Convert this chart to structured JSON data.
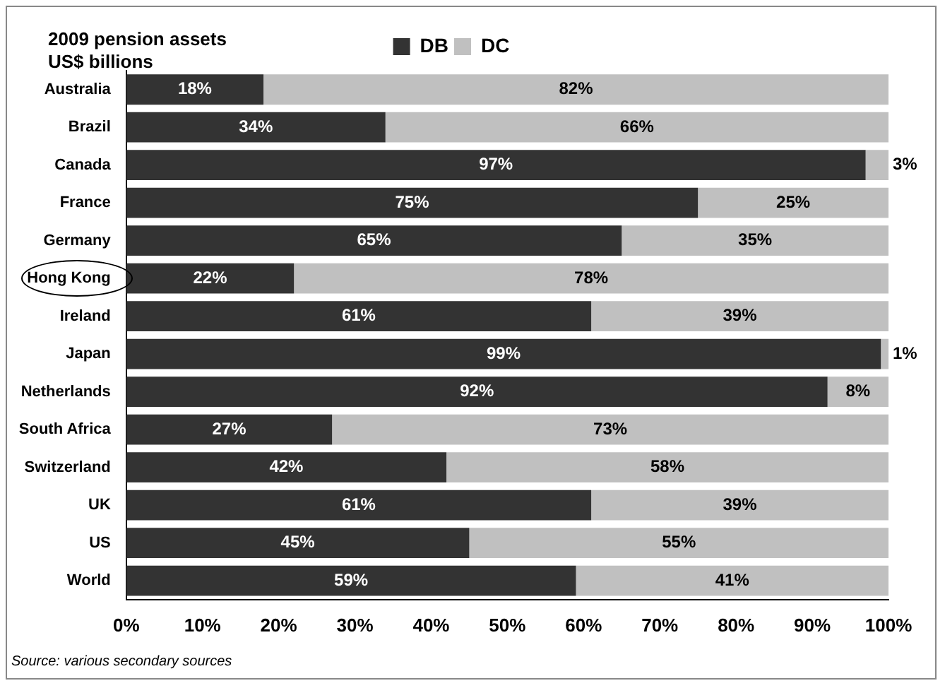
{
  "chart_data": {
    "type": "bar",
    "orientation": "horizontal",
    "stacked": true,
    "title": "2009 pension assets\nUS$ billions",
    "categories": [
      "Australia",
      "Brazil",
      "Canada",
      "France",
      "Germany",
      "Hong Kong",
      "Ireland",
      "Japan",
      "Netherlands",
      "South Africa",
      "Switzerland",
      "UK",
      "US",
      "World"
    ],
    "series": [
      {
        "name": "DB",
        "color": "#333333",
        "values": [
          18,
          34,
          97,
          75,
          65,
          22,
          61,
          99,
          92,
          27,
          42,
          61,
          45,
          59
        ],
        "value_labels": [
          "18%",
          "34%",
          "97%",
          "75%",
          "65%",
          "22%",
          "61%",
          "99%",
          "92%",
          "27%",
          "42%",
          "61%",
          "45%",
          "59%"
        ]
      },
      {
        "name": "DC",
        "color": "#c0c0c0",
        "values": [
          82,
          66,
          3,
          25,
          35,
          78,
          39,
          1,
          8,
          73,
          58,
          39,
          55,
          41
        ],
        "value_labels": [
          "82%",
          "66%",
          "3%",
          "25%",
          "35%",
          "78%",
          "39%",
          "1%",
          "8%",
          "73%",
          "58%",
          "39%",
          "55%",
          "41%"
        ]
      }
    ],
    "xlim": [
      0,
      100
    ],
    "xticks": [
      {
        "value": 0,
        "label": "0%"
      },
      {
        "value": 10,
        "label": "10%"
      },
      {
        "value": 20,
        "label": "20%"
      },
      {
        "value": 30,
        "label": "30%"
      },
      {
        "value": 40,
        "label": "40%"
      },
      {
        "value": 50,
        "label": "50%"
      },
      {
        "value": 60,
        "label": "60%"
      },
      {
        "value": 70,
        "label": "70%"
      },
      {
        "value": 80,
        "label": "80%"
      },
      {
        "value": 90,
        "label": "90%"
      },
      {
        "value": 100,
        "label": "100%"
      }
    ],
    "grid": false,
    "legend": "top",
    "annotations": [
      "Source: various secondary sources"
    ]
  }
}
